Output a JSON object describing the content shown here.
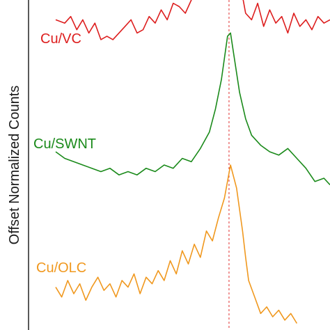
{
  "chart_data": {
    "type": "line",
    "ylabel": "Offset Normalized Counts",
    "xlabel": "",
    "x_range": [
      0,
      100
    ],
    "y_range": [
      0,
      100
    ],
    "grid": false,
    "legend": "inline labels, left of each trace",
    "reference_line": {
      "x": 66.5,
      "color": "#e03030",
      "style": "dashed"
    },
    "series": [
      {
        "name": "Cu/VC",
        "color": "#dd1e1e",
        "offset": 66,
        "x": [
          9,
          12,
          14,
          16,
          18,
          20,
          22,
          24,
          26,
          28,
          30,
          32,
          34,
          36,
          38,
          40,
          42,
          44,
          46,
          48,
          50,
          52,
          54,
          56,
          58,
          60,
          62,
          64,
          66,
          68,
          70,
          72,
          74,
          76,
          78,
          80,
          82,
          84,
          86,
          88,
          90,
          92,
          94,
          96,
          98,
          100
        ],
        "y": [
          28,
          27,
          29,
          25,
          28,
          24,
          27,
          22,
          23,
          22,
          24,
          26,
          28,
          24,
          25,
          29,
          27,
          31,
          28,
          33,
          32,
          30,
          34,
          36,
          42,
          50,
          60,
          68,
          78,
          62,
          40,
          30,
          28,
          33,
          26,
          31,
          27,
          29,
          24,
          30,
          26,
          28,
          25,
          29,
          27,
          28
        ]
      },
      {
        "name": "Cu/SWNT",
        "color": "#1a8a1a",
        "offset": 34,
        "x": [
          9,
          12,
          15,
          18,
          21,
          24,
          27,
          30,
          33,
          36,
          39,
          42,
          45,
          48,
          51,
          54,
          57,
          60,
          62,
          64,
          66,
          67,
          68,
          70,
          72,
          74,
          77,
          80,
          83,
          86,
          89,
          92,
          95,
          98,
          100
        ],
        "y": [
          20,
          18,
          17,
          16,
          15,
          14,
          15,
          13,
          14,
          13,
          15,
          14,
          16,
          15,
          18,
          17,
          21,
          26,
          33,
          42,
          55,
          56,
          50,
          38,
          30,
          25,
          22,
          20,
          19,
          21,
          18,
          15,
          11,
          12,
          10
        ]
      },
      {
        "name": "Cu/OLC",
        "color": "#f0981e",
        "offset": 0,
        "x": [
          9,
          11,
          13,
          15,
          17,
          19,
          21,
          23,
          25,
          27,
          29,
          31,
          33,
          35,
          37,
          39,
          41,
          43,
          45,
          47,
          49,
          51,
          53,
          55,
          57,
          59,
          61,
          63,
          65,
          67,
          69,
          71,
          72,
          73,
          75,
          77,
          79,
          81,
          83,
          85,
          87,
          89
        ],
        "y": [
          13,
          10,
          15,
          11,
          14,
          9,
          13,
          16,
          12,
          14,
          10,
          15,
          13,
          17,
          11,
          16,
          14,
          18,
          15,
          21,
          17,
          24,
          20,
          26,
          22,
          30,
          27,
          34,
          40,
          50,
          43,
          30,
          22,
          15,
          10,
          5,
          7,
          4,
          6,
          3,
          5,
          2
        ]
      }
    ]
  }
}
